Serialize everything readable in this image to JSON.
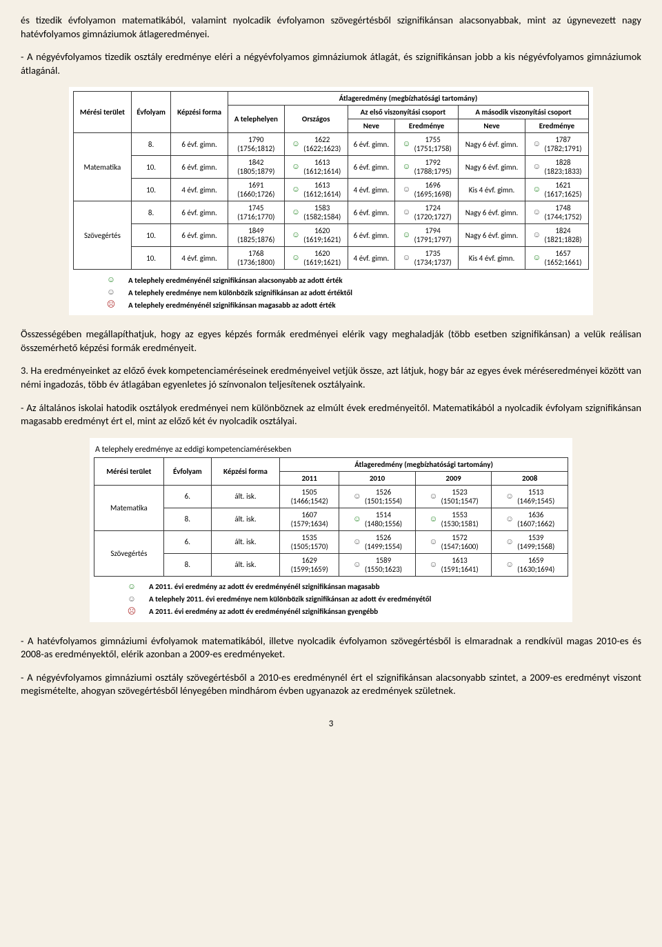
{
  "paragraphs": {
    "p1": "és tizedik évfolyamon matematikából, valamint nyolcadik évfolyamon szövegértésből szignifikánsan alacsonyabbak, mint az úgynevezett nagy hatévfolyamos gimnáziumok átlageredményei.",
    "p2": "- A négyévfolyamos tizedik osztály eredménye eléri a négyévfolyamos gimnáziumok átlagát, és szignifikánsan jobb a kis négyévfolyamos gimnáziumok átlagánál.",
    "p3": "Összességében megállapíthatjuk, hogy az egyes képzés formák eredményei elérik vagy meghaladják (több esetben szignifikánsan) a velük reálisan összemérhető képzési formák eredményeit.",
    "p4": "3. Ha eredményeinket az előző évek kompetenciaméréseinek eredményeivel vetjük össze, azt látjuk, hogy bár az egyes évek méréseredményei között van némi ingadozás, több év átlagában egyenletes jó színvonalon teljesítenek osztályaink.",
    "p5": "- Az általános iskolai hatodik osztályok eredményei nem különböznek az elmúlt évek eredményeitől. Matematikából a nyolcadik évfolyam szignifikánsan magasabb eredményt ért el, mint az előző két év nyolcadik osztályai.",
    "p6": "- A hatévfolyamos gimnáziumi évfolyamok matematikából, illetve nyolcadik évfolyamon szövegértésből is elmaradnak a rendkívül magas 2010-es és 2008-as eredményektől, elérik azonban a 2009-es eredményeket.",
    "p7": "- A négyévfolyamos gimnáziumi osztály szövegértésből a 2010-es eredménynél ért el szignifikánsan alacsonyabb szintet, a 2009-es eredményt viszont megismételte, ahogyan szövegértésből lényegében mindhárom évben ugyanazok az eredmények születnek."
  },
  "table1": {
    "headers": {
      "merge_top": "Átlageredmény (megbízhatósági tartomány)",
      "meresi": "Mérési terület",
      "evfolyam": "Évfolyam",
      "kepzesi": "Képzési forma",
      "telephely": "A telephelyen",
      "orszagos": "Országos",
      "elso": "Az első viszonyítási csoport",
      "masodik": "A második viszonyítási csoport",
      "neve": "Neve",
      "eredmenye": "Eredménye"
    },
    "rows": [
      {
        "area": "Matematika",
        "span": 3,
        "evf": "8.",
        "kf": "6 évf. gimn.",
        "tel": "1790",
        "telci": "(1756;1812)",
        "orsz": "1622",
        "orszci": "(1622;1623)",
        "of": "green",
        "n1": "6 évf. gimn.",
        "e1": "1755",
        "e1ci": "(1751;1758)",
        "f1": "green",
        "n2": "Nagy 6 évf. gimn.",
        "e2": "1787",
        "e2ci": "(1782;1791)",
        "f2": "neutral"
      },
      {
        "evf": "10.",
        "kf": "6 évf. gimn.",
        "tel": "1842",
        "telci": "(1805;1879)",
        "orsz": "1613",
        "orszci": "(1612;1614)",
        "of": "green",
        "n1": "6 évf. gimn.",
        "e1": "1792",
        "e1ci": "(1788;1795)",
        "f1": "green",
        "n2": "Nagy 6 évf. gimn.",
        "e2": "1828",
        "e2ci": "(1823;1833)",
        "f2": "neutral"
      },
      {
        "evf": "10.",
        "kf": "4 évf. gimn.",
        "tel": "1691",
        "telci": "(1660;1726)",
        "orsz": "1613",
        "orszci": "(1612;1614)",
        "of": "green",
        "n1": "4 évf. gimn.",
        "e1": "1696",
        "e1ci": "(1695;1698)",
        "f1": "neutral",
        "n2": "Kis 4 évf. gimn.",
        "e2": "1621",
        "e2ci": "(1617;1625)",
        "f2": "green"
      },
      {
        "area": "Szövegértés",
        "span": 3,
        "evf": "8.",
        "kf": "6 évf. gimn.",
        "tel": "1745",
        "telci": "(1716;1770)",
        "orsz": "1583",
        "orszci": "(1582;1584)",
        "of": "green",
        "n1": "6 évf. gimn.",
        "e1": "1724",
        "e1ci": "(1720;1727)",
        "f1": "neutral",
        "n2": "Nagy 6 évf. gimn.",
        "e2": "1748",
        "e2ci": "(1744;1752)",
        "f2": "neutral"
      },
      {
        "evf": "10.",
        "kf": "6 évf. gimn.",
        "tel": "1849",
        "telci": "(1825;1876)",
        "orsz": "1620",
        "orszci": "(1619;1621)",
        "of": "green",
        "n1": "6 évf. gimn.",
        "e1": "1794",
        "e1ci": "(1791;1797)",
        "f1": "green",
        "n2": "Nagy 6 évf. gimn.",
        "e2": "1824",
        "e2ci": "(1821;1828)",
        "f2": "neutral"
      },
      {
        "evf": "10.",
        "kf": "4 évf. gimn.",
        "tel": "1768",
        "telci": "(1736;1800)",
        "orsz": "1620",
        "orszci": "(1619;1621)",
        "of": "green",
        "n1": "4 évf. gimn.",
        "e1": "1735",
        "e1ci": "(1734;1737)",
        "f1": "neutral",
        "n2": "Kis 4 évf. gimn.",
        "e2": "1657",
        "e2ci": "(1652;1661)",
        "f2": "green"
      }
    ],
    "legend": {
      "green": "A telephely eredményénél szignifikánsan alacsonyabb az adott érték",
      "neutral": "A telephely eredménye nem különbözik szignifikánsan az adott értéktől",
      "red": "A telephely eredményénél szignifikánsan magasabb az adott érték"
    }
  },
  "table2": {
    "title": "A telephely eredménye az eddigi kompetenciamérésekben",
    "headers": {
      "meresi": "Mérési terület",
      "evfolyam": "Évfolyam",
      "kepzesi": "Képzési forma",
      "merge_top": "Átlageredmény (megbízhatósági tartomány)",
      "y2011": "2011",
      "y2010": "2010",
      "y2009": "2009",
      "y2008": "2008"
    },
    "rows": [
      {
        "area": "Matematika",
        "span": 2,
        "evf": "6.",
        "kf": "ált. isk.",
        "v2011": "1505",
        "c2011": "(1466;1542)",
        "v2010": "1526",
        "c2010": "(1501;1554)",
        "f2010": "neutral",
        "v2009": "1523",
        "c2009": "(1501;1547)",
        "f2009": "neutral",
        "v2008": "1513",
        "c2008": "(1469;1545)",
        "f2008": "neutral"
      },
      {
        "evf": "8.",
        "kf": "ált. isk.",
        "v2011": "1607",
        "c2011": "(1579;1634)",
        "v2010": "1514",
        "c2010": "(1480;1556)",
        "f2010": "green",
        "v2009": "1553",
        "c2009": "(1530;1581)",
        "f2009": "green",
        "v2008": "1636",
        "c2008": "(1607;1662)",
        "f2008": "neutral"
      },
      {
        "area": "Szövegértés",
        "span": 2,
        "evf": "6.",
        "kf": "ált. isk.",
        "v2011": "1535",
        "c2011": "(1505;1570)",
        "v2010": "1526",
        "c2010": "(1499;1554)",
        "f2010": "neutral",
        "v2009": "1572",
        "c2009": "(1547;1600)",
        "f2009": "neutral",
        "v2008": "1539",
        "c2008": "(1499;1568)",
        "f2008": "neutral"
      },
      {
        "evf": "8.",
        "kf": "ált. isk.",
        "v2011": "1629",
        "c2011": "(1599;1659)",
        "v2010": "1589",
        "c2010": "(1550;1623)",
        "f2010": "neutral",
        "v2009": "1613",
        "c2009": "(1591;1641)",
        "f2009": "neutral",
        "v2008": "1659",
        "c2008": "(1630;1694)",
        "f2008": "neutral"
      }
    ],
    "legend": {
      "green": "A 2011. évi eredmény az adott év eredményénél szignifikánsan magasabb",
      "neutral": "A telephely 2011. évi eredménye nem különbözik szignifikánsan az adott év eredményétől",
      "red": "A 2011. évi eredmény az adott év eredményénél szignifikánsan gyengébb"
    }
  },
  "faces": {
    "green": "☺",
    "neutral": "☺",
    "red": "☹"
  },
  "pageNumber": "3"
}
